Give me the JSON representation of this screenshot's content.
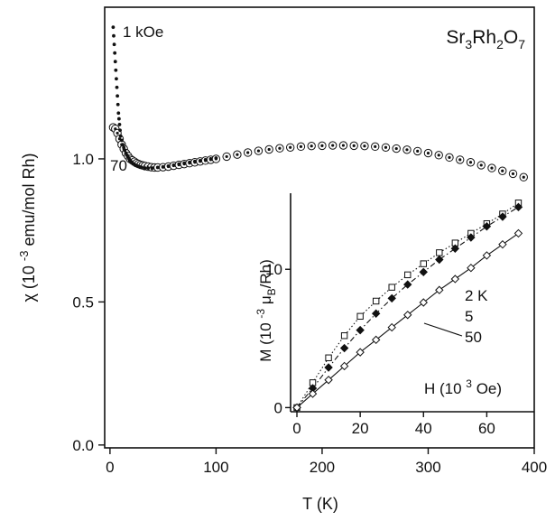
{
  "chart_data": [
    {
      "type": "scatter",
      "title": "Sr3Rh2O7",
      "title_parts": {
        "base1": "Sr",
        "sub1": "3",
        "base2": "Rh",
        "sub2": "2",
        "base3": "O",
        "sub3": "7"
      },
      "xlabel": "T (K)",
      "ylabel": "χ (10 -3 emu/mol Rh)",
      "ylabel_parts": {
        "pre": "χ (10 ",
        "exp": "-3",
        "post": " emu/mol Rh)"
      },
      "xlim": [
        -5,
        400
      ],
      "ylim": [
        -0.01,
        1.53
      ],
      "xticks": [
        0,
        100,
        200,
        300,
        400
      ],
      "xtick_labels": [
        "0",
        "100",
        "200",
        "300",
        "400"
      ],
      "yticks": [
        0.0,
        0.5,
        1.0
      ],
      "ytick_labels": [
        "0.0",
        "0.5",
        "1.0"
      ],
      "annotations": [
        "1 kOe",
        "70"
      ],
      "series": [
        {
          "name": "1 kOe",
          "marker": "dot",
          "x": [
            3,
            3.5,
            4,
            4.5,
            5,
            5.5,
            6,
            6.5,
            7,
            7.5,
            8,
            8.5,
            9,
            9.5,
            10,
            11,
            12,
            13,
            14,
            15,
            16,
            17,
            18,
            19,
            20,
            22,
            24,
            26,
            28,
            30,
            33,
            36,
            40,
            45,
            50,
            55,
            60,
            65,
            70,
            75,
            80,
            85,
            90,
            95,
            100
          ],
          "y": [
            1.46,
            1.43,
            1.4,
            1.37,
            1.34,
            1.31,
            1.28,
            1.25,
            1.22,
            1.19,
            1.16,
            1.14,
            1.12,
            1.1,
            1.08,
            1.065,
            1.05,
            1.04,
            1.03,
            1.02,
            1.013,
            1.007,
            1.0,
            0.995,
            0.99,
            0.983,
            0.978,
            0.975,
            0.972,
            0.97,
            0.968,
            0.968,
            0.968,
            0.97,
            0.972,
            0.975,
            0.978,
            0.982,
            0.985,
            0.988,
            0.991,
            0.994,
            0.997,
            1.0,
            1.003
          ]
        },
        {
          "name": "70",
          "marker": "circle-dot",
          "x": [
            3,
            5,
            7,
            9,
            11,
            13,
            15,
            17,
            19,
            21,
            23,
            25,
            27,
            29,
            31,
            33,
            36,
            39,
            42,
            45,
            50,
            55,
            60,
            65,
            70,
            75,
            80,
            85,
            90,
            95,
            100,
            110,
            120,
            130,
            140,
            150,
            160,
            170,
            180,
            190,
            200,
            210,
            220,
            230,
            240,
            250,
            260,
            270,
            280,
            290,
            300,
            310,
            320,
            330,
            340,
            350,
            360,
            370,
            380,
            390
          ],
          "y": [
            1.11,
            1.105,
            1.09,
            1.07,
            1.05,
            1.035,
            1.02,
            1.01,
            1.0,
            0.995,
            0.99,
            0.985,
            0.982,
            0.979,
            0.977,
            0.975,
            0.973,
            0.971,
            0.97,
            0.97,
            0.971,
            0.973,
            0.976,
            0.979,
            0.982,
            0.985,
            0.988,
            0.991,
            0.994,
            0.997,
            1.0,
            1.008,
            1.015,
            1.022,
            1.028,
            1.033,
            1.037,
            1.04,
            1.043,
            1.045,
            1.046,
            1.047,
            1.047,
            1.046,
            1.045,
            1.043,
            1.04,
            1.036,
            1.032,
            1.027,
            1.02,
            1.013,
            1.005,
            0.997,
            0.988,
            0.978,
            0.968,
            0.958,
            0.948,
            0.936
          ]
        }
      ]
    },
    {
      "type": "scatter",
      "xlabel": "H (10 3 Oe)",
      "xlabel_parts": {
        "pre": "H (10 ",
        "exp": "3",
        "post": " Oe)"
      },
      "ylabel": "M (10 -3 μB/Rh)",
      "ylabel_parts": {
        "pre": "M (10 ",
        "exp": "-3",
        "mid": " μ",
        "sub": "B",
        "post": "/Rh)"
      },
      "xlim": [
        -2,
        75
      ],
      "ylim": [
        -0.3,
        15.5
      ],
      "xticks": [
        0,
        20,
        40,
        60
      ],
      "xtick_labels": [
        "0",
        "20",
        "40",
        "60"
      ],
      "yticks": [
        0,
        10
      ],
      "ytick_labels": [
        "0",
        "10"
      ],
      "legend_labels": [
        "2 K",
        "5",
        "50"
      ],
      "series": [
        {
          "name": "2 K",
          "marker": "open-square",
          "line": "dotted",
          "x": [
            0,
            5,
            10,
            15,
            20,
            25,
            30,
            35,
            40,
            45,
            50,
            55,
            60,
            65,
            70
          ],
          "y": [
            0,
            1.8,
            3.6,
            5.2,
            6.6,
            7.7,
            8.7,
            9.6,
            10.4,
            11.2,
            11.9,
            12.6,
            13.3,
            14.0,
            14.8
          ]
        },
        {
          "name": "5",
          "marker": "filled-diamond",
          "line": "dash-dot",
          "x": [
            0,
            5,
            10,
            15,
            20,
            25,
            30,
            35,
            40,
            45,
            50,
            55,
            60,
            65,
            70
          ],
          "y": [
            0,
            1.4,
            2.9,
            4.3,
            5.6,
            6.8,
            7.9,
            8.9,
            9.8,
            10.7,
            11.5,
            12.3,
            13.1,
            13.8,
            14.5
          ]
        },
        {
          "name": "50",
          "marker": "open-diamond",
          "line": "solid",
          "x": [
            0,
            5,
            10,
            15,
            20,
            25,
            30,
            35,
            40,
            45,
            50,
            55,
            60,
            65,
            70
          ],
          "y": [
            0,
            1.0,
            2.0,
            3.0,
            4.0,
            4.9,
            5.8,
            6.7,
            7.6,
            8.5,
            9.3,
            10.1,
            11.0,
            11.8,
            12.6
          ]
        }
      ]
    }
  ]
}
